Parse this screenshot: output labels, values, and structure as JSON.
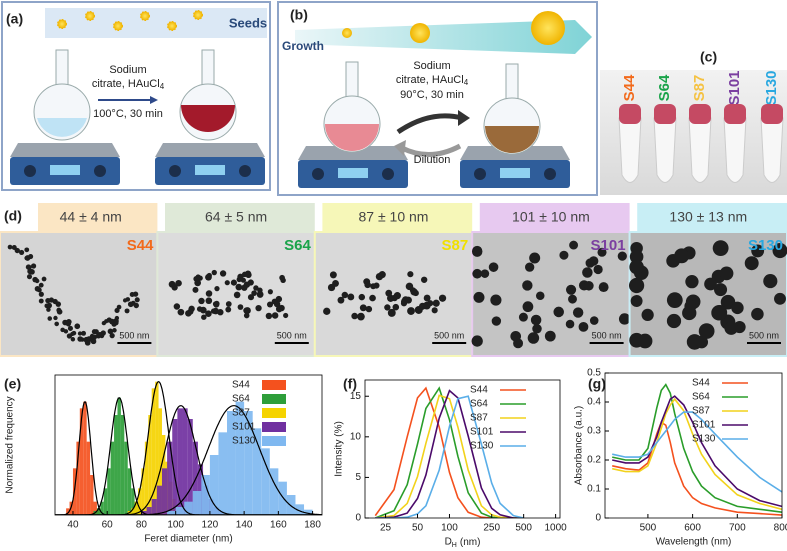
{
  "panels": {
    "a": {
      "label": "(a)",
      "banner": "Seeds",
      "line1": "Sodium",
      "line2": "citrate, HAuCl",
      "line2_sub": "4",
      "line3": "100°C, 30 min"
    },
    "b": {
      "label": "(b)",
      "banner": "Growth",
      "line1": "Sodium",
      "line2": "citrate, HAuCl",
      "line2_sub": "4",
      "line3": "90°C, 30 min",
      "arrow": "Dilution"
    },
    "c": {
      "label": "(c)",
      "samples": [
        {
          "name": "S44",
          "color": "#f26a1b"
        },
        {
          "name": "S64",
          "color": "#1aa34a"
        },
        {
          "name": "S87",
          "color": "#f5c242"
        },
        {
          "name": "S101",
          "color": "#7b3fa0"
        },
        {
          "name": "S130",
          "color": "#29a8e0"
        }
      ]
    },
    "d": {
      "label": "(d)",
      "images": [
        {
          "size": "44 ± 4 nm",
          "name": "S44",
          "scale": "500 nm",
          "header_color": "#fbe6c4",
          "name_color": "#f26a1b"
        },
        {
          "size": "64 ± 5 nm",
          "name": "S64",
          "scale": "500 nm",
          "header_color": "#dfe9d8",
          "name_color": "#1aa34a"
        },
        {
          "size": "87 ± 10 nm",
          "name": "S87",
          "scale": "500 nm",
          "header_color": "#f6f7b8",
          "name_color": "#f0e000"
        },
        {
          "size": "101 ± 10 nm",
          "name": "S101",
          "scale": "500 nm",
          "header_color": "#e7c9f0",
          "name_color": "#7b3fa0"
        },
        {
          "size": "130 ± 13 nm",
          "name": "S130",
          "scale": "500 nm",
          "header_color": "#c8eef5",
          "name_color": "#29a8e0"
        }
      ]
    }
  },
  "chart_data": [
    {
      "type": "histogram",
      "label": "(e)",
      "xlabel": "Feret diameter (nm)",
      "ylabel": "Normalized frequency",
      "xlim": [
        29.5,
        185.5
      ],
      "xticks": [
        40,
        60,
        80,
        100,
        120,
        140,
        160,
        180
      ],
      "ylim": [
        0,
        1.05
      ],
      "legend": "upper right",
      "fit_color": "#000000",
      "series": [
        {
          "name": "S44",
          "color": "#f4511e",
          "bins": [
            36,
            38,
            40,
            42,
            44,
            46,
            48,
            50,
            52,
            54,
            56
          ],
          "values": [
            0.05,
            0.1,
            0.35,
            0.55,
            0.8,
            0.85,
            0.55,
            0.3,
            0.1,
            0.05
          ],
          "fit": {
            "mean": 47,
            "sd": 3.5,
            "peak": 0.85
          }
        },
        {
          "name": "S64",
          "color": "#2e9e3a",
          "bins": [
            52,
            54,
            56,
            58,
            60,
            62,
            64,
            66,
            68,
            70,
            72,
            74,
            76,
            78,
            80,
            82,
            84
          ],
          "values": [
            0.03,
            0.05,
            0.1,
            0.2,
            0.35,
            0.55,
            0.75,
            0.88,
            0.75,
            0.55,
            0.35,
            0.2,
            0.1,
            0.05,
            0.03,
            0.02
          ],
          "fit": {
            "mean": 67,
            "sd": 5,
            "peak": 0.88
          }
        },
        {
          "name": "S87",
          "color": "#f5d300",
          "bins": [
            72,
            74,
            76,
            78,
            80,
            82,
            84,
            86,
            88,
            90,
            92,
            94,
            96,
            98,
            100,
            102,
            104,
            106
          ],
          "values": [
            0.03,
            0.05,
            0.1,
            0.2,
            0.35,
            0.55,
            0.75,
            0.95,
            1.0,
            0.8,
            0.6,
            0.4,
            0.25,
            0.12,
            0.06,
            0.03,
            0.02
          ],
          "fit": {
            "mean": 90,
            "sd": 6,
            "peak": 1.0
          }
        },
        {
          "name": "S101",
          "color": "#7030a0",
          "bins": [
            80,
            83,
            86,
            89,
            92,
            95,
            98,
            101,
            104,
            107,
            110,
            113,
            116,
            119,
            122,
            125,
            128
          ],
          "values": [
            0.03,
            0.06,
            0.12,
            0.22,
            0.35,
            0.55,
            0.72,
            0.8,
            0.8,
            0.72,
            0.55,
            0.38,
            0.22,
            0.12,
            0.06,
            0.03
          ],
          "fit": {
            "mean": 103,
            "sd": 9,
            "peak": 0.82
          }
        },
        {
          "name": "S130",
          "color": "#7fb8f0",
          "bins": [
            95,
            100,
            105,
            110,
            115,
            120,
            125,
            130,
            135,
            140,
            145,
            150,
            155,
            160,
            165,
            170,
            175,
            180
          ],
          "values": [
            0.03,
            0.06,
            0.1,
            0.18,
            0.3,
            0.45,
            0.62,
            0.78,
            0.85,
            0.78,
            0.65,
            0.5,
            0.35,
            0.25,
            0.15,
            0.08,
            0.04
          ],
          "fit": {
            "mean": 134,
            "sd": 15,
            "peak": 0.82
          }
        }
      ]
    },
    {
      "type": "line",
      "label": "(f)",
      "xlabel": "D",
      "xlabel_sub": "H",
      "xlabel_unit": "(nm)",
      "ylabel": "Intensity (%)",
      "xscale": "log",
      "xlim": [
        16,
        1100
      ],
      "xticks": [
        25,
        50,
        100,
        250,
        500,
        1000
      ],
      "ylim": [
        0,
        17
      ],
      "yticks": [
        0,
        5,
        10,
        15
      ],
      "legend": "upper right",
      "x": [
        20,
        30,
        40,
        50,
        60,
        80,
        100,
        120,
        150,
        200,
        250,
        300,
        400,
        500
      ],
      "series": [
        {
          "name": "S44",
          "color": "#f4511e",
          "values": [
            0.3,
            3.5,
            10.0,
            14.8,
            16.0,
            11.2,
            5.6,
            2.5,
            0.7,
            0.1,
            0,
            0,
            0,
            0
          ]
        },
        {
          "name": "S64",
          "color": "#2a9d2a",
          "values": [
            0,
            0.9,
            4.1,
            9.1,
            13.5,
            16.0,
            12.1,
            7.6,
            3.1,
            0.6,
            0.1,
            0,
            0,
            0
          ]
        },
        {
          "name": "S87",
          "color": "#f2d21b",
          "values": [
            0,
            0.3,
            1.8,
            5.1,
            9.2,
            15.1,
            14.7,
            11.2,
            5.9,
            1.5,
            0.4,
            0.1,
            0,
            0
          ]
        },
        {
          "name": "S101",
          "color": "#4b0a6a",
          "values": [
            0,
            0.1,
            0.6,
            2.4,
            5.3,
            12.3,
            15.7,
            14.8,
            10.1,
            3.7,
            1.2,
            0.4,
            0,
            0
          ]
        },
        {
          "name": "S130",
          "color": "#5aaee8",
          "values": [
            0,
            0,
            0.1,
            0.5,
            1.5,
            5.9,
            11.3,
            14.7,
            15.0,
            9.1,
            4.3,
            1.8,
            0.3,
            0
          ]
        }
      ]
    },
    {
      "type": "line",
      "label": "(g)",
      "xlabel": "Wavelength (nm)",
      "ylabel": "Absorbance (a.u.)",
      "xlim": [
        404,
        800
      ],
      "xticks": [
        500,
        600,
        700,
        800
      ],
      "ylim": [
        0,
        0.5
      ],
      "yticks": [
        0,
        0.1,
        0.2,
        0.3,
        0.4,
        0.5
      ],
      "legend": "upper right",
      "x": [
        420,
        450,
        480,
        500,
        520,
        530,
        540,
        550,
        560,
        580,
        600,
        620,
        650,
        700,
        750,
        800
      ],
      "series": [
        {
          "name": "S44",
          "color": "#f4511e",
          "values": [
            0.18,
            0.17,
            0.165,
            0.19,
            0.29,
            0.33,
            0.32,
            0.26,
            0.19,
            0.11,
            0.07,
            0.05,
            0.035,
            0.02,
            0.015,
            0.01
          ]
        },
        {
          "name": "S64",
          "color": "#2a9d2a",
          "values": [
            0.21,
            0.2,
            0.2,
            0.24,
            0.38,
            0.44,
            0.46,
            0.43,
            0.36,
            0.24,
            0.16,
            0.11,
            0.07,
            0.04,
            0.03,
            0.02
          ]
        },
        {
          "name": "S87",
          "color": "#f2d21b",
          "values": [
            0.17,
            0.16,
            0.16,
            0.18,
            0.26,
            0.31,
            0.36,
            0.39,
            0.41,
            0.37,
            0.29,
            0.22,
            0.15,
            0.08,
            0.05,
            0.03
          ]
        },
        {
          "name": "S101",
          "color": "#4b0a6a",
          "values": [
            0.2,
            0.19,
            0.19,
            0.21,
            0.28,
            0.33,
            0.37,
            0.41,
            0.42,
            0.39,
            0.33,
            0.26,
            0.18,
            0.1,
            0.06,
            0.04
          ]
        },
        {
          "name": "S130",
          "color": "#5aaee8",
          "values": [
            0.22,
            0.21,
            0.21,
            0.22,
            0.26,
            0.28,
            0.3,
            0.32,
            0.34,
            0.365,
            0.365,
            0.34,
            0.29,
            0.21,
            0.14,
            0.09
          ]
        }
      ]
    }
  ]
}
